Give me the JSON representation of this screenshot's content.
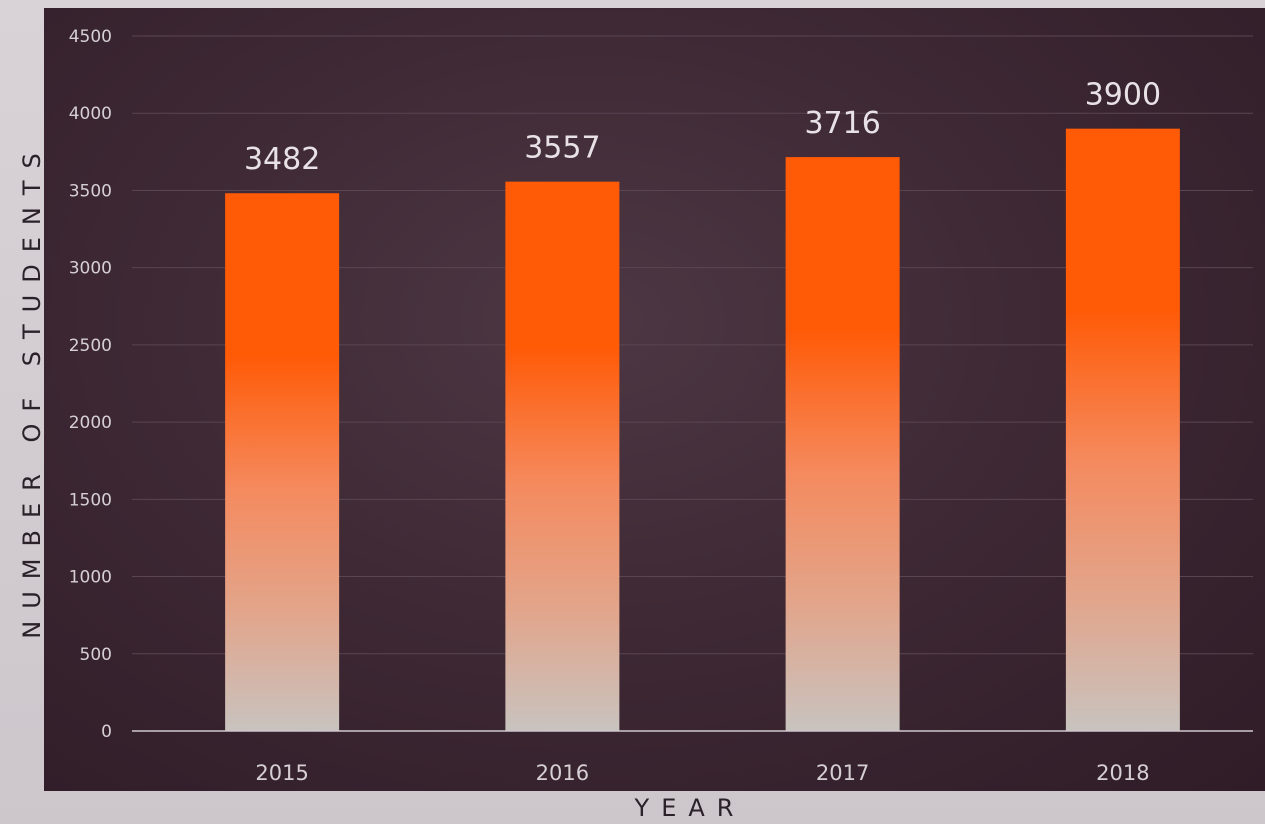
{
  "chart_data": {
    "type": "bar",
    "categories": [
      "2015",
      "2016",
      "2017",
      "2018"
    ],
    "values": [
      3482,
      3557,
      3716,
      3900
    ],
    "data_labels": [
      "3482",
      "3557",
      "3716",
      "3900"
    ],
    "xlabel": "YEAR",
    "ylabel": "NUMBER OF STUDENTS",
    "ylim": [
      0,
      4500
    ],
    "yticks": [
      0,
      500,
      1000,
      1500,
      2000,
      2500,
      3000,
      3500,
      4000,
      4500
    ],
    "grid": true,
    "colors": {
      "bar_top": "#ff5a06",
      "bar_mid": "#f58a5e",
      "bar_bottom": "#c8c3bf",
      "background": "#3e2935"
    }
  }
}
